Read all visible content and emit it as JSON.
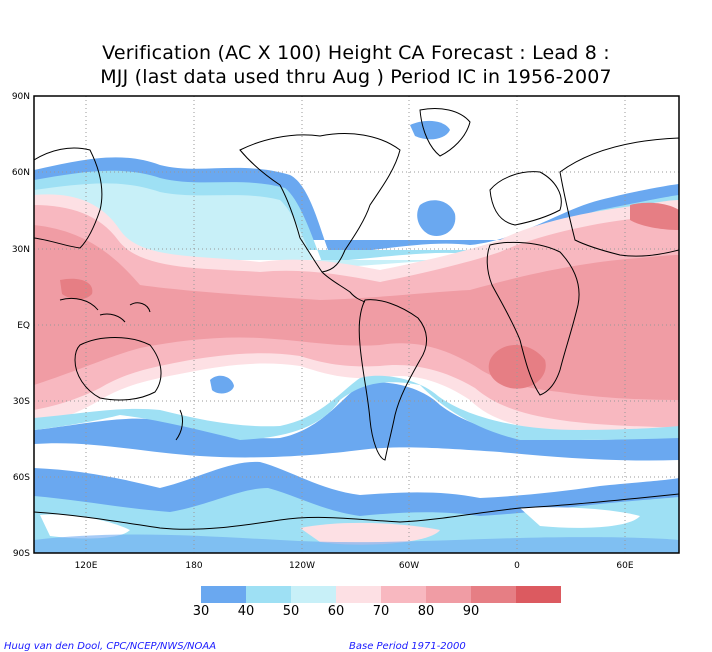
{
  "title": {
    "line1": "Verification (AC X 100) Height CA Forecast : Lead 8 :",
    "line2": "MJJ (last data used thru Aug ) Period IC in 1956-2007"
  },
  "lat_labels": [
    "90N",
    "60N",
    "30N",
    "EQ",
    "30S",
    "60S",
    "90S"
  ],
  "lon_labels": [
    "120E",
    "180",
    "120W",
    "60W",
    "0",
    "60E"
  ],
  "colorbar": {
    "labels": [
      "30",
      "40",
      "50",
      "60",
      "70",
      "80",
      "90"
    ],
    "colors": [
      "#6aa8f0",
      "#9ee0f4",
      "#c8f0f8",
      "#fde0e4",
      "#f8b8c0",
      "#f09ca4",
      "#e67e84",
      "#dc5a60"
    ]
  },
  "footer": {
    "credit": "Huug van den Dool, CPC/NCEP/NWS/NOAA",
    "base_period": "Base Period 1971-2000"
  }
}
